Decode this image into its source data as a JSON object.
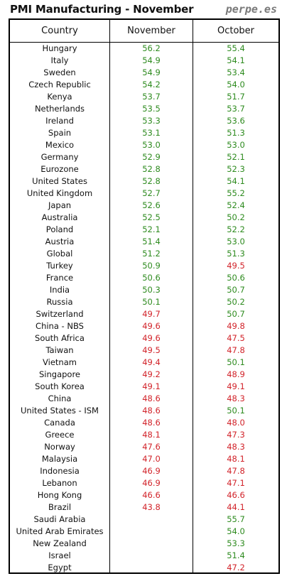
{
  "header": {
    "title": "PMI Manufacturing - November",
    "brand": "perpe.es"
  },
  "colors": {
    "above_50": "#2e8b1f",
    "below_50": "#d2232a",
    "text": "#111111",
    "border": "#000000"
  },
  "chart_data": {
    "type": "table",
    "title": "PMI Manufacturing - November",
    "columns": [
      "Country",
      "November",
      "October"
    ],
    "threshold": 50,
    "rows": [
      {
        "country": "Hungary",
        "november": "56.2",
        "october": "55.4"
      },
      {
        "country": "Italy",
        "november": "54.9",
        "october": "54.1"
      },
      {
        "country": "Sweden",
        "november": "54.9",
        "october": "53.4"
      },
      {
        "country": "Czech Republic",
        "november": "54.2",
        "october": "54.0"
      },
      {
        "country": "Kenya",
        "november": "53.7",
        "october": "51.7"
      },
      {
        "country": "Netherlands",
        "november": "53.5",
        "october": "53.7"
      },
      {
        "country": "Ireland",
        "november": "53.3",
        "october": "53.6"
      },
      {
        "country": "Spain",
        "november": "53.1",
        "october": "51.3"
      },
      {
        "country": "Mexico",
        "november": "53.0",
        "october": "53.0"
      },
      {
        "country": "Germany",
        "november": "52.9",
        "october": "52.1"
      },
      {
        "country": "Eurozone",
        "november": "52.8",
        "october": "52.3"
      },
      {
        "country": "United States",
        "november": "52.8",
        "october": "54.1"
      },
      {
        "country": "United Kingdom",
        "november": "52.7",
        "october": "55.2"
      },
      {
        "country": "Japan",
        "november": "52.6",
        "october": "52.4"
      },
      {
        "country": "Australia",
        "november": "52.5",
        "october": "50.2"
      },
      {
        "country": "Poland",
        "november": "52.1",
        "october": "52.2"
      },
      {
        "country": "Austria",
        "november": "51.4",
        "october": "53.0"
      },
      {
        "country": "Global",
        "november": "51.2",
        "october": "51.3"
      },
      {
        "country": "Turkey",
        "november": "50.9",
        "october": "49.5"
      },
      {
        "country": "France",
        "november": "50.6",
        "october": "50.6"
      },
      {
        "country": "India",
        "november": "50.3",
        "october": "50.7"
      },
      {
        "country": "Russia",
        "november": "50.1",
        "october": "50.2"
      },
      {
        "country": "Switzerland",
        "november": "49.7",
        "october": "50.7"
      },
      {
        "country": "China - NBS",
        "november": "49.6",
        "october": "49.8"
      },
      {
        "country": "South Africa",
        "november": "49.6",
        "october": "47.5"
      },
      {
        "country": "Taiwan",
        "november": "49.5",
        "october": "47.8"
      },
      {
        "country": "Vietnam",
        "november": "49.4",
        "october": "50.1"
      },
      {
        "country": "Singapore",
        "november": "49.2",
        "october": "48.9"
      },
      {
        "country": "South Korea",
        "november": "49.1",
        "october": "49.1"
      },
      {
        "country": "China",
        "november": "48.6",
        "october": "48.3"
      },
      {
        "country": "United States - ISM",
        "november": "48.6",
        "october": "50.1"
      },
      {
        "country": "Canada",
        "november": "48.6",
        "october": "48.0"
      },
      {
        "country": "Greece",
        "november": "48.1",
        "october": "47.3"
      },
      {
        "country": "Norway",
        "november": "47.6",
        "october": "48.3"
      },
      {
        "country": "Malaysia",
        "november": "47.0",
        "october": "48.1"
      },
      {
        "country": "Indonesia",
        "november": "46.9",
        "october": "47.8"
      },
      {
        "country": "Lebanon",
        "november": "46.9",
        "october": "47.1"
      },
      {
        "country": "Hong Kong",
        "november": "46.6",
        "october": "46.6"
      },
      {
        "country": "Brazil",
        "november": "43.8",
        "october": "44.1"
      },
      {
        "country": "Saudi Arabia",
        "november": "",
        "october": "55.7"
      },
      {
        "country": "United Arab Emirates",
        "november": "",
        "october": "54.0"
      },
      {
        "country": "New Zealand",
        "november": "",
        "october": "53.3"
      },
      {
        "country": "Israel",
        "november": "",
        "october": "51.4"
      },
      {
        "country": "Egypt",
        "november": "",
        "october": "47.2"
      }
    ]
  }
}
